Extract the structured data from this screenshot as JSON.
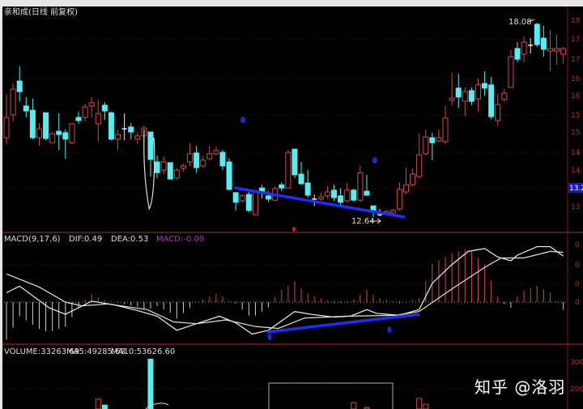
{
  "title": "亲和成(日线 前复权)",
  "watermark": "知乎 @洛羽",
  "colors": {
    "up": "#d24a4a",
    "down": "#55eef2",
    "doji": "#e8e8e8",
    "grid": "#3a1010",
    "axis": "#b03030",
    "trendline": "#1f2cff",
    "macd_label": "#b030c0"
  },
  "chart_data": [
    {
      "type": "candlestick",
      "title": "",
      "y_axis_labels": [
        "18",
        "17",
        "17",
        "16",
        "16",
        "15",
        "15",
        "14",
        "14",
        "13.2",
        "13"
      ],
      "current_price_marker": "13.2",
      "annotations": {
        "high_label": "18.08",
        "low_label": "12.64"
      },
      "ohlc": [
        [
          14.86,
          15.43,
          16.06,
          14.68
        ],
        [
          15.5,
          16.22,
          16.38,
          15.32
        ],
        [
          16.45,
          16.15,
          16.86,
          15.88
        ],
        [
          15.75,
          15.61,
          16.0,
          15.43
        ],
        [
          15.63,
          14.86,
          15.95,
          14.82
        ],
        [
          14.86,
          15.11,
          15.27,
          14.63
        ],
        [
          15.56,
          14.84,
          15.56,
          14.79
        ],
        [
          14.72,
          14.97,
          15.02,
          14.72
        ],
        [
          15.04,
          14.95,
          15.54,
          14.52
        ],
        [
          15.0,
          14.82,
          15.09,
          14.27
        ],
        [
          14.72,
          15.25,
          15.27,
          14.68
        ],
        [
          15.43,
          15.34,
          15.59,
          15.25
        ],
        [
          15.43,
          15.72,
          15.81,
          15.32
        ],
        [
          15.75,
          15.84,
          16.0,
          15.43
        ],
        [
          15.25,
          15.54,
          15.93,
          14.75
        ],
        [
          15.77,
          15.61,
          15.86,
          15.36
        ],
        [
          15.56,
          14.82,
          15.59,
          14.79
        ],
        [
          14.82,
          14.95,
          15.09,
          14.52
        ],
        [
          15.11,
          15.11,
          15.54,
          14.79
        ],
        [
          15.16,
          15.02,
          15.27,
          14.82
        ],
        [
          14.82,
          14.91,
          15.02,
          14.68
        ],
        [
          14.91,
          15.13,
          15.2,
          14.68
        ],
        [
          15.02,
          14.25,
          15.02,
          13.77
        ],
        [
          14.18,
          13.88,
          14.36,
          13.73
        ],
        [
          13.95,
          14.18,
          14.34,
          13.84
        ],
        [
          14.16,
          13.7,
          14.16,
          13.7
        ],
        [
          13.73,
          13.95,
          14.0,
          13.68
        ],
        [
          14.0,
          14.07,
          14.13,
          13.91
        ],
        [
          14.18,
          14.41,
          14.7,
          14.07
        ],
        [
          14.43,
          14.02,
          14.63,
          13.88
        ],
        [
          14.07,
          14.23,
          14.34,
          14.0
        ],
        [
          14.27,
          14.41,
          14.63,
          14.25
        ],
        [
          14.41,
          14.5,
          14.61,
          14.36
        ],
        [
          14.45,
          14.07,
          14.52,
          13.95
        ],
        [
          14.18,
          13.41,
          14.29,
          13.39
        ],
        [
          13.32,
          13.05,
          13.34,
          12.82
        ],
        [
          13.09,
          13.23,
          13.27,
          13.05
        ],
        [
          13.27,
          12.82,
          13.34,
          12.77
        ],
        [
          12.7,
          13.34,
          13.39,
          12.7
        ],
        [
          13.45,
          13.32,
          13.54,
          13.16
        ],
        [
          13.23,
          13.14,
          13.36,
          13.05
        ],
        [
          13.11,
          13.43,
          13.5,
          13.09
        ],
        [
          13.54,
          13.45,
          13.61,
          13.36
        ],
        [
          13.45,
          14.45,
          14.52,
          13.43
        ],
        [
          14.54,
          13.82,
          14.54,
          13.73
        ],
        [
          13.84,
          13.57,
          14.18,
          13.54
        ],
        [
          13.59,
          13.25,
          13.95,
          13.18
        ],
        [
          13.14,
          13.14,
          13.27,
          12.95
        ],
        [
          13.14,
          13.2,
          13.32,
          13.09
        ],
        [
          13.23,
          13.34,
          13.5,
          13.16
        ],
        [
          13.39,
          13.18,
          13.54,
          13.09
        ],
        [
          13.23,
          13.05,
          13.45,
          12.95
        ],
        [
          13.09,
          13.39,
          13.59,
          13.05
        ],
        [
          13.39,
          13.11,
          13.43,
          13.07
        ],
        [
          13.11,
          13.88,
          14.07,
          13.05
        ],
        [
          13.36,
          13.25,
          13.82,
          13.23
        ],
        [
          12.95,
          12.77,
          12.95,
          12.64
        ],
        [
          12.7,
          12.7,
          12.86,
          12.66
        ],
        [
          12.75,
          12.79,
          12.84,
          12.7
        ],
        [
          12.75,
          12.82,
          12.86,
          12.7
        ],
        [
          12.86,
          13.41,
          13.61,
          12.82
        ],
        [
          13.34,
          13.54,
          14.02,
          13.27
        ],
        [
          13.54,
          13.84,
          14.0,
          13.5
        ],
        [
          13.77,
          14.38,
          14.97,
          13.73
        ],
        [
          14.41,
          14.88,
          15.09,
          14.36
        ],
        [
          14.86,
          14.72,
          15.0,
          14.23
        ],
        [
          14.77,
          14.86,
          15.09,
          14.72
        ],
        [
          14.75,
          15.41,
          15.75,
          14.68
        ],
        [
          15.91,
          15.97,
          16.68,
          15.77
        ],
        [
          16.25,
          16.0,
          16.65,
          15.7
        ],
        [
          15.88,
          16.15,
          16.27,
          15.47
        ],
        [
          16.18,
          15.88,
          16.27,
          15.77
        ],
        [
          15.95,
          16.34,
          16.52,
          15.61
        ],
        [
          16.38,
          16.25,
          16.72,
          16.04
        ],
        [
          16.34,
          15.45,
          16.56,
          15.38
        ],
        [
          15.34,
          15.79,
          16.09,
          15.2
        ],
        [
          15.93,
          16.11,
          16.22,
          15.88
        ],
        [
          16.27,
          17.13,
          17.31,
          16.27
        ],
        [
          17.36,
          17.06,
          17.54,
          16.97
        ],
        [
          17.2,
          17.54,
          17.7,
          16.97
        ],
        [
          17.45,
          17.45,
          17.65,
          17.22
        ],
        [
          18.04,
          17.47,
          18.08,
          17.4
        ],
        [
          17.65,
          17.34,
          18.0,
          17.13
        ],
        [
          17.29,
          17.36,
          17.88,
          16.72
        ],
        [
          17.29,
          17.36,
          17.74,
          16.9
        ],
        [
          17.2,
          17.36,
          17.4,
          16.95
        ]
      ]
    },
    {
      "type": "line",
      "title": "MACD(9,17,6)",
      "legend": {
        "dif": "DIF:0.49",
        "dea": "DEA:0.53",
        "macd": "MACD:-0.09"
      },
      "y_axis_labels": [
        "0",
        "0",
        "0",
        "0"
      ],
      "series": [
        {
          "name": "DIF",
          "points": [
            [
              0,
              0.1
            ],
            [
              2,
              0.17
            ],
            [
              6.5,
              -0.06
            ],
            [
              9,
              -0.13
            ],
            [
              13,
              0.01
            ],
            [
              16.5,
              -0.03
            ],
            [
              20,
              -0.09
            ],
            [
              23,
              -0.15
            ],
            [
              26,
              -0.3
            ],
            [
              29,
              -0.23
            ],
            [
              32.5,
              -0.15
            ],
            [
              35,
              -0.22
            ],
            [
              37.5,
              -0.34
            ],
            [
              40,
              -0.3
            ],
            [
              44,
              -0.1
            ],
            [
              46.5,
              -0.13
            ],
            [
              50,
              -0.16
            ],
            [
              52.5,
              -0.15
            ],
            [
              55,
              -0.08
            ],
            [
              56.5,
              -0.12
            ],
            [
              60,
              -0.14
            ],
            [
              63,
              -0.08
            ],
            [
              65,
              0.2
            ],
            [
              68,
              0.4
            ],
            [
              70.5,
              0.54
            ],
            [
              73,
              0.57
            ],
            [
              75,
              0.48
            ],
            [
              77,
              0.44
            ],
            [
              78,
              0.5
            ],
            [
              81,
              0.59
            ],
            [
              83,
              0.59
            ],
            [
              85,
              0.49
            ]
          ]
        },
        {
          "name": "DEA",
          "points": [
            [
              0,
              0.3
            ],
            [
              5,
              0.16
            ],
            [
              9,
              0.0
            ],
            [
              11.5,
              -0.04
            ],
            [
              15.5,
              -0.02
            ],
            [
              21.5,
              -0.08
            ],
            [
              25.5,
              -0.21
            ],
            [
              29,
              -0.23
            ],
            [
              33.5,
              -0.19
            ],
            [
              38,
              -0.26
            ],
            [
              41.5,
              -0.28
            ],
            [
              45.5,
              -0.17
            ],
            [
              52,
              -0.15
            ],
            [
              59.5,
              -0.14
            ],
            [
              63,
              -0.1
            ],
            [
              68,
              0.14
            ],
            [
              73,
              0.37
            ],
            [
              75.5,
              0.47
            ],
            [
              79,
              0.47
            ],
            [
              83,
              0.54
            ],
            [
              85,
              0.53
            ]
          ]
        }
      ]
    },
    {
      "type": "bar",
      "title": "VOLUME",
      "legend": {
        "volume": "VOLUME:33263.69",
        "ma5": "MA5:49285.68",
        "ma10": "MA10:53626.60"
      },
      "y_axis_labels": [
        "300",
        "200"
      ],
      "bars": [
        {
          "index": 14,
          "value": 161,
          "dir": "up"
        },
        {
          "index": 15,
          "value": 139,
          "dir": "down"
        },
        {
          "index": 22,
          "value": 311,
          "dir": "down"
        },
        {
          "index": 53,
          "value": 148,
          "dir": "up"
        },
        {
          "index": 55,
          "value": 130,
          "dir": "up"
        },
        {
          "index": 63,
          "value": 164,
          "dir": "up"
        },
        {
          "index": 64,
          "value": 142,
          "dir": "up"
        }
      ]
    }
  ]
}
